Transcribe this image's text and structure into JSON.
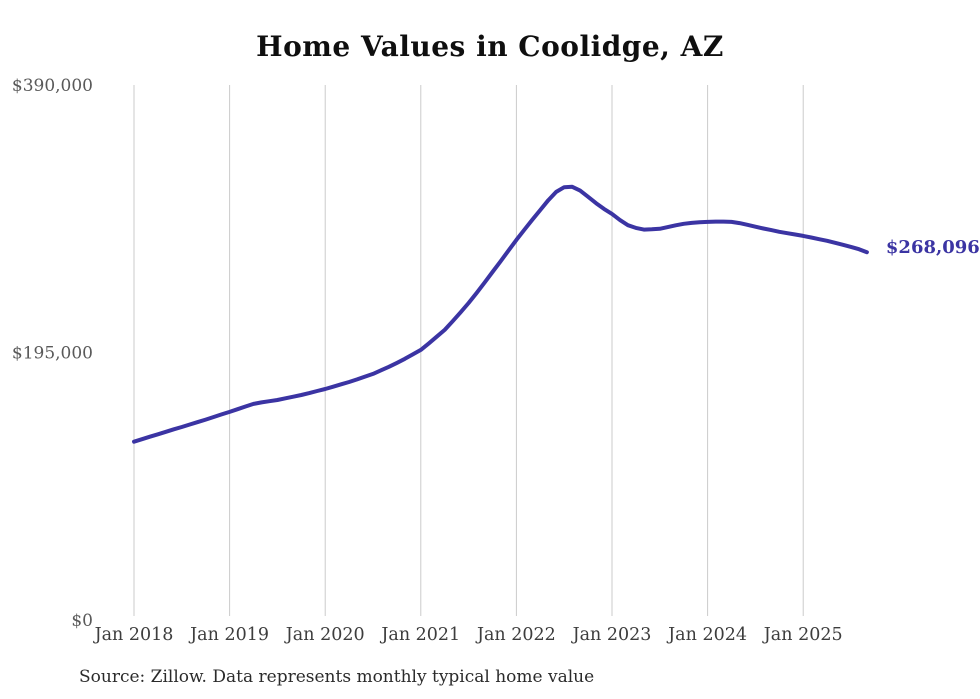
{
  "page": {
    "background": "#ffffff"
  },
  "header": {
    "title": "Home Values in Coolidge, AZ"
  },
  "footer": {
    "source_text": "Source: Zillow. Data represents monthly typical home value"
  },
  "colors": {
    "line": "#3b34a3",
    "grid": "#cbcbcb",
    "y_label": "#595959",
    "x_label": "#3d3d3d",
    "title": "#0f0f0f",
    "source": "#2b2b2b"
  },
  "chart_data": {
    "type": "line",
    "title": "Home Values in Coolidge, AZ",
    "xlabel": "",
    "ylabel": "",
    "ylim": [
      0,
      390000
    ],
    "grid": "vertical-year-lines",
    "legend": "none",
    "x_start": "2018-01",
    "x_end": "2025-09",
    "x_interval": "monthly",
    "x_tick_labels": [
      "Jan 2018",
      "Jan 2019",
      "Jan 2020",
      "Jan 2021",
      "Jan 2022",
      "Jan 2023",
      "Jan 2024",
      "Jan 2025"
    ],
    "y_ticks": [
      {
        "label": "$0",
        "value": 0
      },
      {
        "label": "$195,000",
        "value": 195000
      },
      {
        "label": "$390,000",
        "value": 390000
      }
    ],
    "end_label": "$268,096",
    "end_value": 268096,
    "series": [
      {
        "name": "Monthly typical home value",
        "color": "#3b34a3",
        "values": [
          130000,
          131800,
          133600,
          135400,
          137200,
          139000,
          140700,
          142500,
          144300,
          146100,
          148000,
          149900,
          151700,
          153700,
          155600,
          157500,
          158600,
          159500,
          160400,
          161600,
          162800,
          164000,
          165400,
          166900,
          168400,
          170100,
          171800,
          173500,
          175400,
          177400,
          179400,
          182000,
          184600,
          187400,
          190400,
          193600,
          196900,
          201600,
          206500,
          211500,
          217800,
          224300,
          231100,
          238400,
          245900,
          253700,
          261400,
          269200,
          277100,
          284500,
          291800,
          298900,
          306000,
          312100,
          315500,
          315800,
          313000,
          308500,
          303800,
          299700,
          296000,
          291500,
          287800,
          285800,
          284600,
          284800,
          285200,
          286400,
          287700,
          288800,
          289500,
          289900,
          290200,
          290400,
          290400,
          290200,
          289300,
          288100,
          286700,
          285400,
          284200,
          283000,
          282000,
          281000,
          280000,
          278800,
          277600,
          276400,
          275000,
          273500,
          272000,
          270300,
          268096
        ]
      }
    ]
  }
}
